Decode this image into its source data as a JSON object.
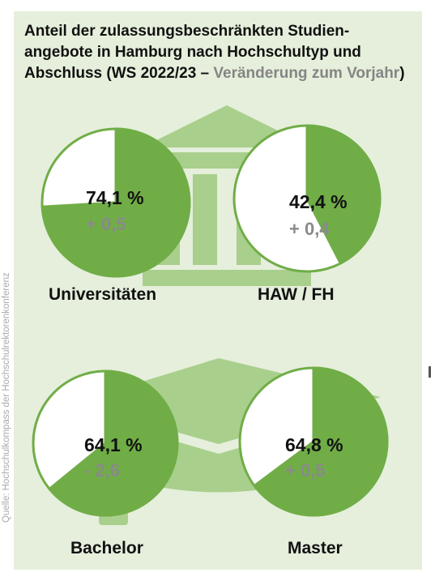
{
  "title": {
    "main": "Anteil der zulassungsbeschränkten Studien-angebote in Hamburg nach Hochschultyp und Abschluss (WS 2022/23 – ",
    "highlight": "Veränderung zum Vorjahr",
    "close": ")"
  },
  "source": "Quelle: Hochschulkompass der Hochschulrektorenkonferenz",
  "colors": {
    "panel": "#e5efdb",
    "slice": "#70ad47",
    "decor": "#a9cf8c",
    "remainder": "#ffffff"
  },
  "chart_data": [
    {
      "type": "pie",
      "label": "Universitäten",
      "value": 74.1,
      "value_text": "74,1 %",
      "change": 0.5,
      "change_text": "+ 0,5"
    },
    {
      "type": "pie",
      "label": "HAW / FH",
      "value": 42.4,
      "value_text": "42,4 %",
      "change": 0.4,
      "change_text": "+ 0,4"
    },
    {
      "type": "pie",
      "label": "Bachelor",
      "value": 64.1,
      "value_text": "64,1 %",
      "change": -2.6,
      "change_text": "- 2,6"
    },
    {
      "type": "pie",
      "label": "Master",
      "value": 64.8,
      "value_text": "64,8 %",
      "change": 0.5,
      "change_text": "+ 0,5"
    }
  ]
}
